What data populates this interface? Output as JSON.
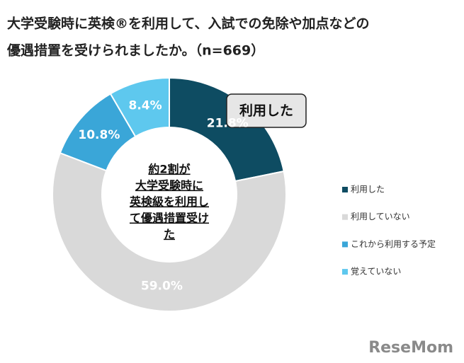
{
  "chart_data": {
    "type": "donut",
    "title": [
      "大学受験時に英検®を利用して、入試での免除や加点などの",
      "優遇措置を受けられましたか。（n=669）"
    ],
    "categories": [
      "利用した",
      "利用していない",
      "これから利用する予定",
      "覚えていない"
    ],
    "values": [
      21.8,
      59.0,
      10.8,
      8.4
    ],
    "value_labels": [
      "21.8%",
      "59.0%",
      "10.8%",
      "8.4%"
    ],
    "colors": [
      "#0e4c62",
      "#d9d9d9",
      "#3aa6d8",
      "#5ec8ee"
    ],
    "label_colors": [
      "#ffffff",
      "#ffffff",
      "#ffffff",
      "#ffffff"
    ],
    "center_text": [
      "約2割が",
      "大学受験時に",
      "英検級を利用し",
      "て優遇措置受け",
      "た"
    ],
    "callout": "利用した",
    "watermark": "ReseMom"
  }
}
